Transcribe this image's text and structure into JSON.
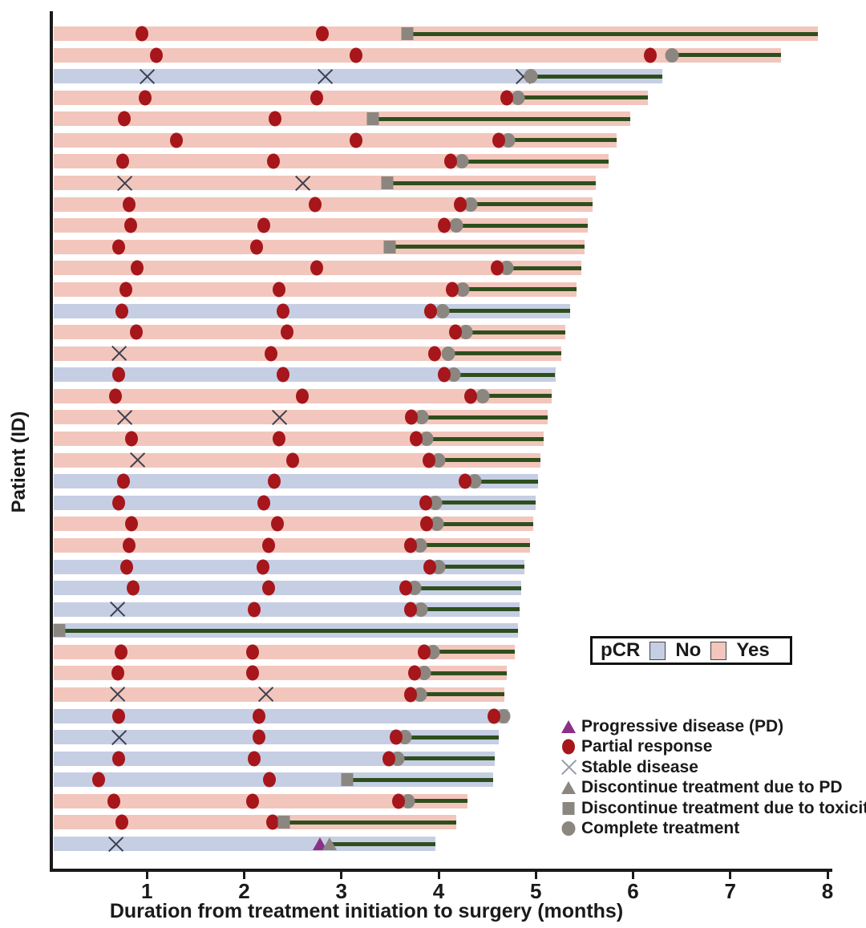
{
  "axes": {
    "y_label": "Patient (ID)",
    "x_label": "Duration from treatment initiation to surgery (months)",
    "x_ticks": [
      "1",
      "2",
      "3",
      "4",
      "5",
      "6",
      "7",
      "8"
    ],
    "x_range": [
      0,
      8
    ],
    "grid": "off"
  },
  "colors": {
    "pcr_yes_bar": "#f2c6bc",
    "pcr_no_bar": "#c6cee4",
    "partial_response": "#a6161b",
    "stable_disease_x": "#3c4050",
    "progressive_disease": "#8c2f87",
    "gray_marker": "#8b8780",
    "surgery_line": "#2e4f1d",
    "axis": "#1a1a1a"
  },
  "pcr_legend": {
    "title": "pCR",
    "items": [
      {
        "label": "No",
        "color": "#c6cee4"
      },
      {
        "label": "Yes",
        "color": "#f2c6bc"
      }
    ]
  },
  "marker_legend": [
    {
      "marker": "pd-triangle-icon",
      "label": "Progressive disease (PD)"
    },
    {
      "marker": "partial-response-icon",
      "label": "Partial response"
    },
    {
      "marker": "stable-disease-icon",
      "label": "Stable disease"
    },
    {
      "marker": "discontinue-pd-icon",
      "label": "Discontinue treatment due to PD"
    },
    {
      "marker": "discontinue-toxicity-icon",
      "label": "Discontinue treatment due to toxicity"
    },
    {
      "marker": "complete-treatment-icon",
      "label": "Complete treatment"
    }
  ],
  "chart_data": {
    "type": "bar",
    "subtype": "swimmer-plot",
    "orientation": "horizontal",
    "x_unit": "months",
    "event_types": [
      "pd",
      "pr",
      "sd",
      "disc_pd",
      "disc_tox",
      "complete"
    ],
    "patients": [
      {
        "pcr": "Yes",
        "end": 7.9,
        "line": 3.68,
        "events": [
          {
            "t": 0.95,
            "m": "pr"
          },
          {
            "t": 2.8,
            "m": "pr"
          },
          {
            "t": 3.68,
            "m": "disc_tox"
          }
        ]
      },
      {
        "pcr": "Yes",
        "end": 7.52,
        "line": 6.4,
        "events": [
          {
            "t": 1.1,
            "m": "pr"
          },
          {
            "t": 3.15,
            "m": "pr"
          },
          {
            "t": 6.18,
            "m": "pr"
          },
          {
            "t": 6.4,
            "m": "complete"
          }
        ]
      },
      {
        "pcr": "No",
        "end": 6.3,
        "line": 4.95,
        "events": [
          {
            "t": 1.0,
            "m": "sd"
          },
          {
            "t": 2.83,
            "m": "sd"
          },
          {
            "t": 4.87,
            "m": "sd"
          },
          {
            "t": 4.95,
            "m": "complete"
          }
        ]
      },
      {
        "pcr": "Yes",
        "end": 6.15,
        "line": 4.82,
        "events": [
          {
            "t": 0.98,
            "m": "pr"
          },
          {
            "t": 2.75,
            "m": "pr"
          },
          {
            "t": 4.7,
            "m": "pr"
          },
          {
            "t": 4.82,
            "m": "complete"
          }
        ]
      },
      {
        "pcr": "Yes",
        "end": 5.97,
        "line": 3.32,
        "events": [
          {
            "t": 0.77,
            "m": "pr"
          },
          {
            "t": 2.32,
            "m": "pr"
          },
          {
            "t": 3.32,
            "m": "disc_tox"
          }
        ]
      },
      {
        "pcr": "Yes",
        "end": 5.83,
        "line": 4.72,
        "events": [
          {
            "t": 1.3,
            "m": "pr"
          },
          {
            "t": 3.15,
            "m": "pr"
          },
          {
            "t": 4.62,
            "m": "pr"
          },
          {
            "t": 4.72,
            "m": "complete"
          }
        ]
      },
      {
        "pcr": "Yes",
        "end": 5.75,
        "line": 4.24,
        "events": [
          {
            "t": 0.75,
            "m": "pr"
          },
          {
            "t": 2.3,
            "m": "pr"
          },
          {
            "t": 4.12,
            "m": "pr"
          },
          {
            "t": 4.24,
            "m": "complete"
          }
        ]
      },
      {
        "pcr": "Yes",
        "end": 5.62,
        "line": 3.47,
        "events": [
          {
            "t": 0.77,
            "m": "sd"
          },
          {
            "t": 2.6,
            "m": "sd"
          },
          {
            "t": 3.47,
            "m": "disc_tox"
          }
        ]
      },
      {
        "pcr": "Yes",
        "end": 5.58,
        "line": 4.33,
        "events": [
          {
            "t": 0.82,
            "m": "pr"
          },
          {
            "t": 2.73,
            "m": "pr"
          },
          {
            "t": 4.22,
            "m": "pr"
          },
          {
            "t": 4.33,
            "m": "complete"
          }
        ]
      },
      {
        "pcr": "Yes",
        "end": 5.53,
        "line": 4.18,
        "events": [
          {
            "t": 0.83,
            "m": "pr"
          },
          {
            "t": 2.2,
            "m": "pr"
          },
          {
            "t": 4.06,
            "m": "pr"
          },
          {
            "t": 4.18,
            "m": "complete"
          }
        ]
      },
      {
        "pcr": "Yes",
        "end": 5.5,
        "line": 3.5,
        "events": [
          {
            "t": 0.71,
            "m": "pr"
          },
          {
            "t": 2.13,
            "m": "pr"
          },
          {
            "t": 3.5,
            "m": "disc_tox"
          }
        ]
      },
      {
        "pcr": "Yes",
        "end": 5.47,
        "line": 4.7,
        "events": [
          {
            "t": 0.9,
            "m": "pr"
          },
          {
            "t": 2.75,
            "m": "pr"
          },
          {
            "t": 4.6,
            "m": "pr"
          },
          {
            "t": 4.7,
            "m": "complete"
          }
        ]
      },
      {
        "pcr": "Yes",
        "end": 5.42,
        "line": 4.25,
        "events": [
          {
            "t": 0.78,
            "m": "pr"
          },
          {
            "t": 2.36,
            "m": "pr"
          },
          {
            "t": 4.14,
            "m": "pr"
          },
          {
            "t": 4.25,
            "m": "complete"
          }
        ]
      },
      {
        "pcr": "No",
        "end": 5.35,
        "line": 4.04,
        "events": [
          {
            "t": 0.74,
            "m": "pr"
          },
          {
            "t": 2.4,
            "m": "pr"
          },
          {
            "t": 3.92,
            "m": "pr"
          },
          {
            "t": 4.04,
            "m": "complete"
          }
        ]
      },
      {
        "pcr": "Yes",
        "end": 5.3,
        "line": 4.28,
        "events": [
          {
            "t": 0.89,
            "m": "pr"
          },
          {
            "t": 2.44,
            "m": "pr"
          },
          {
            "t": 4.17,
            "m": "pr"
          },
          {
            "t": 4.28,
            "m": "complete"
          }
        ]
      },
      {
        "pcr": "Yes",
        "end": 5.26,
        "line": 4.1,
        "events": [
          {
            "t": 0.71,
            "m": "sd"
          },
          {
            "t": 2.28,
            "m": "pr"
          },
          {
            "t": 3.96,
            "m": "pr"
          },
          {
            "t": 4.1,
            "m": "complete"
          }
        ]
      },
      {
        "pcr": "No",
        "end": 5.2,
        "line": 4.16,
        "events": [
          {
            "t": 0.71,
            "m": "pr"
          },
          {
            "t": 2.4,
            "m": "pr"
          },
          {
            "t": 4.06,
            "m": "pr"
          },
          {
            "t": 4.16,
            "m": "complete"
          }
        ]
      },
      {
        "pcr": "Yes",
        "end": 5.16,
        "line": 4.45,
        "events": [
          {
            "t": 0.68,
            "m": "pr"
          },
          {
            "t": 2.6,
            "m": "pr"
          },
          {
            "t": 4.33,
            "m": "pr"
          },
          {
            "t": 4.45,
            "m": "complete"
          }
        ]
      },
      {
        "pcr": "Yes",
        "end": 5.12,
        "line": 3.83,
        "events": [
          {
            "t": 0.77,
            "m": "sd"
          },
          {
            "t": 2.36,
            "m": "sd"
          },
          {
            "t": 3.72,
            "m": "pr"
          },
          {
            "t": 3.83,
            "m": "complete"
          }
        ]
      },
      {
        "pcr": "Yes",
        "end": 5.08,
        "line": 3.88,
        "events": [
          {
            "t": 0.84,
            "m": "pr"
          },
          {
            "t": 2.36,
            "m": "pr"
          },
          {
            "t": 3.77,
            "m": "pr"
          },
          {
            "t": 3.88,
            "m": "complete"
          }
        ]
      },
      {
        "pcr": "Yes",
        "end": 5.05,
        "line": 4.0,
        "events": [
          {
            "t": 0.9,
            "m": "sd"
          },
          {
            "t": 2.5,
            "m": "pr"
          },
          {
            "t": 3.9,
            "m": "pr"
          },
          {
            "t": 4.0,
            "m": "complete"
          }
        ]
      },
      {
        "pcr": "No",
        "end": 5.02,
        "line": 4.37,
        "events": [
          {
            "t": 0.76,
            "m": "pr"
          },
          {
            "t": 2.31,
            "m": "pr"
          },
          {
            "t": 4.27,
            "m": "pr"
          },
          {
            "t": 4.37,
            "m": "complete"
          }
        ]
      },
      {
        "pcr": "No",
        "end": 5.0,
        "line": 3.97,
        "events": [
          {
            "t": 0.71,
            "m": "pr"
          },
          {
            "t": 2.2,
            "m": "pr"
          },
          {
            "t": 3.87,
            "m": "pr"
          },
          {
            "t": 3.97,
            "m": "complete"
          }
        ]
      },
      {
        "pcr": "Yes",
        "end": 4.97,
        "line": 3.98,
        "events": [
          {
            "t": 0.84,
            "m": "pr"
          },
          {
            "t": 2.34,
            "m": "pr"
          },
          {
            "t": 3.88,
            "m": "pr"
          },
          {
            "t": 3.98,
            "m": "complete"
          }
        ]
      },
      {
        "pcr": "Yes",
        "end": 4.94,
        "line": 3.81,
        "events": [
          {
            "t": 0.82,
            "m": "pr"
          },
          {
            "t": 2.25,
            "m": "pr"
          },
          {
            "t": 3.71,
            "m": "pr"
          },
          {
            "t": 3.81,
            "m": "complete"
          }
        ]
      },
      {
        "pcr": "No",
        "end": 4.88,
        "line": 4.0,
        "events": [
          {
            "t": 0.79,
            "m": "pr"
          },
          {
            "t": 2.19,
            "m": "pr"
          },
          {
            "t": 3.91,
            "m": "pr"
          },
          {
            "t": 4.0,
            "m": "complete"
          }
        ]
      },
      {
        "pcr": "No",
        "end": 4.85,
        "line": 3.75,
        "events": [
          {
            "t": 0.86,
            "m": "pr"
          },
          {
            "t": 2.25,
            "m": "pr"
          },
          {
            "t": 3.66,
            "m": "pr"
          },
          {
            "t": 3.75,
            "m": "complete"
          }
        ]
      },
      {
        "pcr": "No",
        "end": 4.83,
        "line": 3.82,
        "events": [
          {
            "t": 0.7,
            "m": "sd"
          },
          {
            "t": 2.1,
            "m": "pr"
          },
          {
            "t": 3.71,
            "m": "pr"
          },
          {
            "t": 3.82,
            "m": "complete"
          }
        ]
      },
      {
        "pcr": "No",
        "end": 4.82,
        "line": 0.1,
        "events": [
          {
            "t": 0.1,
            "m": "disc_tox"
          }
        ]
      },
      {
        "pcr": "Yes",
        "end": 4.78,
        "line": 3.94,
        "events": [
          {
            "t": 0.73,
            "m": "pr"
          },
          {
            "t": 2.09,
            "m": "pr"
          },
          {
            "t": 3.85,
            "m": "pr"
          },
          {
            "t": 3.94,
            "m": "complete"
          }
        ]
      },
      {
        "pcr": "Yes",
        "end": 4.7,
        "line": 3.85,
        "events": [
          {
            "t": 0.7,
            "m": "pr"
          },
          {
            "t": 2.09,
            "m": "pr"
          },
          {
            "t": 3.75,
            "m": "pr"
          },
          {
            "t": 3.85,
            "m": "complete"
          }
        ]
      },
      {
        "pcr": "Yes",
        "end": 4.68,
        "line": 3.81,
        "events": [
          {
            "t": 0.7,
            "m": "sd"
          },
          {
            "t": 2.22,
            "m": "sd"
          },
          {
            "t": 3.71,
            "m": "pr"
          },
          {
            "t": 3.81,
            "m": "complete"
          }
        ]
      },
      {
        "pcr": "No",
        "end": 4.72,
        "line": 4.67,
        "events": [
          {
            "t": 0.71,
            "m": "pr"
          },
          {
            "t": 2.15,
            "m": "pr"
          },
          {
            "t": 4.57,
            "m": "pr"
          },
          {
            "t": 4.67,
            "m": "complete"
          }
        ]
      },
      {
        "pcr": "No",
        "end": 4.62,
        "line": 3.65,
        "events": [
          {
            "t": 0.71,
            "m": "sd"
          },
          {
            "t": 2.15,
            "m": "pr"
          },
          {
            "t": 3.56,
            "m": "pr"
          },
          {
            "t": 3.65,
            "m": "complete"
          }
        ]
      },
      {
        "pcr": "No",
        "end": 4.58,
        "line": 3.58,
        "events": [
          {
            "t": 0.71,
            "m": "pr"
          },
          {
            "t": 2.1,
            "m": "pr"
          },
          {
            "t": 3.49,
            "m": "pr"
          },
          {
            "t": 3.58,
            "m": "complete"
          }
        ]
      },
      {
        "pcr": "No",
        "end": 4.56,
        "line": 3.06,
        "events": [
          {
            "t": 0.5,
            "m": "pr"
          },
          {
            "t": 2.26,
            "m": "pr"
          },
          {
            "t": 3.06,
            "m": "disc_tox"
          }
        ]
      },
      {
        "pcr": "Yes",
        "end": 4.3,
        "line": 3.69,
        "events": [
          {
            "t": 0.66,
            "m": "pr"
          },
          {
            "t": 2.09,
            "m": "pr"
          },
          {
            "t": 3.59,
            "m": "pr"
          },
          {
            "t": 3.69,
            "m": "complete"
          }
        ]
      },
      {
        "pcr": "Yes",
        "end": 4.18,
        "line": 2.41,
        "events": [
          {
            "t": 0.74,
            "m": "pr"
          },
          {
            "t": 2.29,
            "m": "pr"
          },
          {
            "t": 2.41,
            "m": "disc_tox"
          }
        ]
      },
      {
        "pcr": "No",
        "end": 3.97,
        "line": 2.88,
        "events": [
          {
            "t": 0.68,
            "m": "sd"
          },
          {
            "t": 2.78,
            "m": "pd"
          },
          {
            "t": 2.88,
            "m": "disc_pd"
          }
        ]
      }
    ]
  }
}
